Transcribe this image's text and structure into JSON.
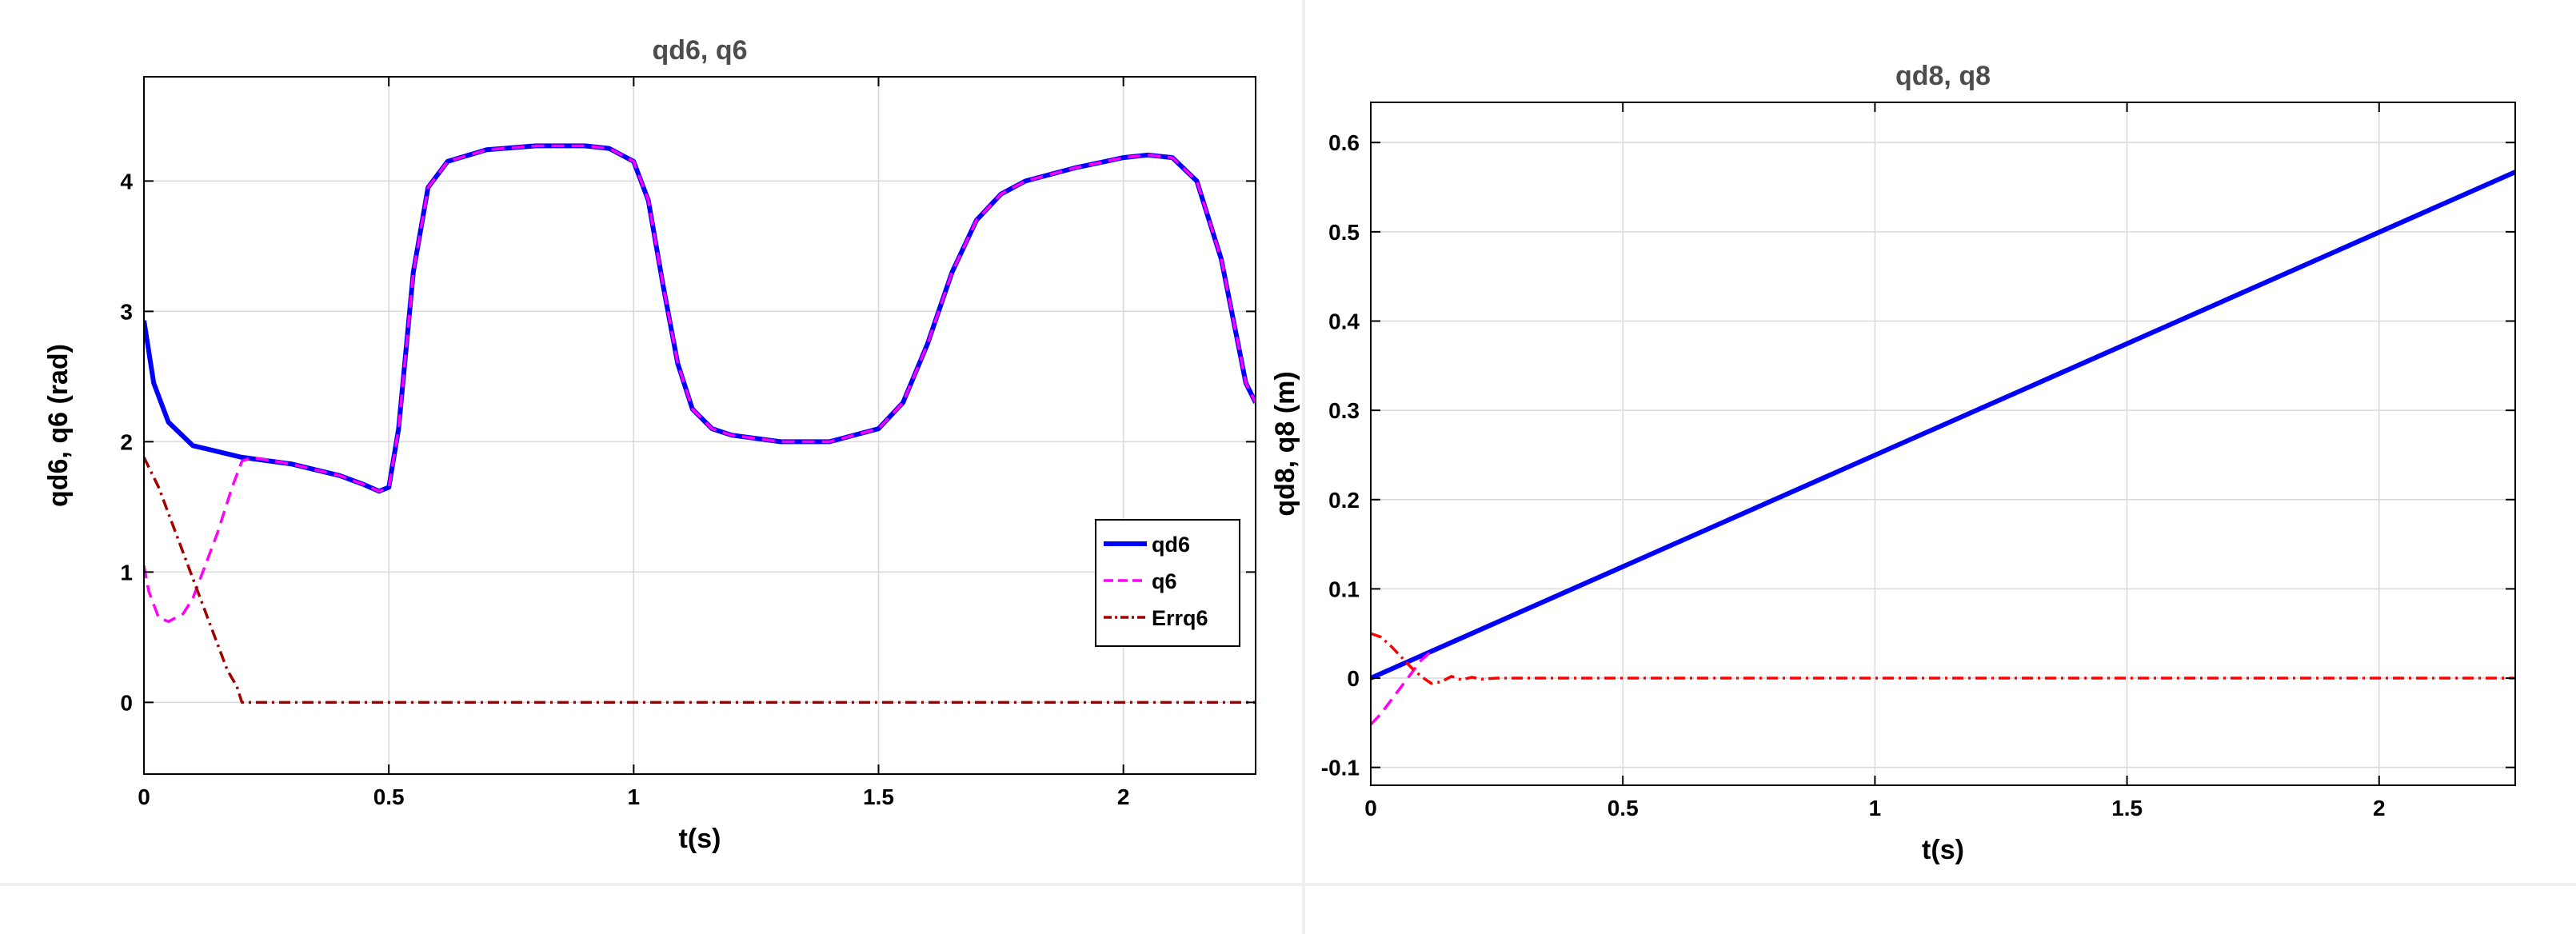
{
  "chart_data": [
    {
      "type": "line",
      "title": "qd6, q6",
      "xlabel": "t(s)",
      "ylabel": "qd6, q6 (rad)",
      "xlim": [
        0,
        2.27
      ],
      "ylim": [
        -0.55,
        4.8
      ],
      "xticks": [
        0,
        0.5,
        1,
        1.5,
        2
      ],
      "xtick_labels": [
        "0",
        "0.5",
        "1",
        "1.5",
        "2"
      ],
      "yticks": [
        0,
        1,
        2,
        3,
        4
      ],
      "ytick_labels": [
        "0",
        "1",
        "2",
        "3",
        "4"
      ],
      "grid": true,
      "legend": "right",
      "series": [
        {
          "name": "qd6",
          "color": "#0000ff",
          "style": "solid",
          "x": [
            0,
            0.02,
            0.05,
            0.1,
            0.2,
            0.3,
            0.4,
            0.45,
            0.48,
            0.5,
            0.52,
            0.55,
            0.58,
            0.62,
            0.7,
            0.8,
            0.9,
            0.95,
            1.0,
            1.03,
            1.06,
            1.09,
            1.12,
            1.16,
            1.2,
            1.3,
            1.4,
            1.5,
            1.55,
            1.6,
            1.65,
            1.7,
            1.75,
            1.8,
            1.9,
            2.0,
            2.05,
            2.1,
            2.15,
            2.2,
            2.25,
            2.27
          ],
          "y": [
            2.93,
            2.45,
            2.15,
            1.97,
            1.88,
            1.83,
            1.74,
            1.67,
            1.62,
            1.65,
            2.1,
            3.3,
            3.95,
            4.15,
            4.24,
            4.27,
            4.27,
            4.25,
            4.15,
            3.85,
            3.2,
            2.6,
            2.25,
            2.1,
            2.05,
            2.0,
            2.0,
            2.1,
            2.3,
            2.75,
            3.3,
            3.7,
            3.9,
            4.0,
            4.1,
            4.18,
            4.2,
            4.18,
            4.0,
            3.4,
            2.45,
            2.3
          ]
        },
        {
          "name": "q6",
          "color": "#ff00ff",
          "style": "dashed",
          "x": [
            0,
            0.01,
            0.03,
            0.05,
            0.08,
            0.1,
            0.12,
            0.15,
            0.18,
            0.2,
            0.22,
            0.3,
            0.4,
            0.45,
            0.48,
            0.5,
            0.52,
            0.55,
            0.58,
            0.62,
            0.7,
            0.8,
            0.9,
            0.95,
            1.0,
            1.03,
            1.06,
            1.09,
            1.12,
            1.16,
            1.2,
            1.3,
            1.4,
            1.5,
            1.55,
            1.6,
            1.65,
            1.7,
            1.75,
            1.8,
            1.9,
            2.0,
            2.05,
            2.1,
            2.15,
            2.2,
            2.25,
            2.27
          ],
          "y": [
            1.05,
            0.85,
            0.65,
            0.62,
            0.68,
            0.8,
            1.0,
            1.3,
            1.65,
            1.85,
            1.88,
            1.83,
            1.74,
            1.67,
            1.62,
            1.65,
            2.1,
            3.3,
            3.95,
            4.15,
            4.24,
            4.27,
            4.27,
            4.25,
            4.15,
            3.85,
            3.2,
            2.6,
            2.25,
            2.1,
            2.05,
            2.0,
            2.0,
            2.1,
            2.3,
            2.75,
            3.3,
            3.7,
            3.9,
            4.0,
            4.1,
            4.18,
            4.2,
            4.18,
            4.0,
            3.4,
            2.45,
            2.3
          ]
        },
        {
          "name": "Errq6",
          "color": "#a00000",
          "style": "dashdot",
          "x": [
            0,
            0.03,
            0.06,
            0.1,
            0.14,
            0.17,
            0.19,
            0.2,
            0.21,
            2.27
          ],
          "y": [
            1.88,
            1.65,
            1.35,
            0.95,
            0.55,
            0.25,
            0.12,
            0.0,
            0.0,
            0.0
          ]
        }
      ]
    },
    {
      "type": "line",
      "title": "qd8, q8",
      "xlabel": "t(s)",
      "ylabel": "qd8, q8 (m)",
      "xlim": [
        0,
        2.27
      ],
      "ylim": [
        -0.12,
        0.645
      ],
      "xticks": [
        0,
        0.5,
        1,
        1.5,
        2
      ],
      "xtick_labels": [
        "0",
        "0.5",
        "1",
        "1.5",
        "2"
      ],
      "yticks": [
        -0.1,
        0,
        0.1,
        0.2,
        0.3,
        0.4,
        0.5,
        0.6
      ],
      "ytick_labels": [
        "-0.1",
        "0",
        "0.1",
        "0.2",
        "0.3",
        "0.4",
        "0.5",
        "0.6"
      ],
      "grid": true,
      "legend": "none",
      "series": [
        {
          "color": "#0000ff",
          "style": "solid",
          "x": [
            0,
            2.27
          ],
          "y": [
            0,
            0.567
          ]
        },
        {
          "color": "#ff00ff",
          "style": "dashed",
          "x": [
            0,
            0.02,
            0.04,
            0.06,
            0.08,
            0.1,
            0.12
          ],
          "y": [
            -0.052,
            -0.04,
            -0.025,
            -0.01,
            0.005,
            0.02,
            0.03
          ]
        },
        {
          "color": "#ff0000",
          "style": "dashdot",
          "x": [
            0,
            0.02,
            0.04,
            0.06,
            0.08,
            0.1,
            0.12,
            0.14,
            0.16,
            0.18,
            0.2,
            0.22,
            0.25,
            2.27
          ],
          "y": [
            0.05,
            0.046,
            0.036,
            0.024,
            0.012,
            0.002,
            -0.006,
            -0.004,
            0.002,
            -0.002,
            0.001,
            -0.001,
            0.0,
            0.0
          ]
        }
      ]
    }
  ]
}
